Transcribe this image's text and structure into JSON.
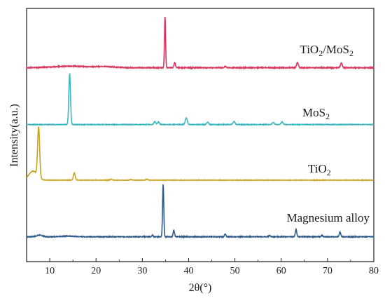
{
  "chart_data": {
    "type": "line",
    "xlabel": "2θ(°)",
    "ylabel": "Intensity(a.u.)",
    "xlim": [
      5,
      80
    ],
    "xticks": [
      "10",
      "20",
      "30",
      "40",
      "50",
      "60",
      "70",
      "80"
    ],
    "grid": false,
    "legend": "inline labels to the right of each trace",
    "series": [
      {
        "name_main": "Magnesium alloy",
        "name_sub": "",
        "name_tail": "",
        "color": "#2d5b8c",
        "baseline": 0.02,
        "noise": 0.006,
        "peaks": [
          {
            "x": 7.8,
            "h": 0.03,
            "w": 0.6
          },
          {
            "x": 14.0,
            "h": 0.012,
            "w": 1.2
          },
          {
            "x": 32.2,
            "h": 0.03,
            "w": 0.12
          },
          {
            "x": 34.5,
            "h": 1.0,
            "w": 0.13
          },
          {
            "x": 36.8,
            "h": 0.12,
            "w": 0.15
          },
          {
            "x": 47.9,
            "h": 0.05,
            "w": 0.15
          },
          {
            "x": 57.5,
            "h": 0.025,
            "w": 0.15
          },
          {
            "x": 63.2,
            "h": 0.14,
            "w": 0.15
          },
          {
            "x": 68.8,
            "h": 0.025,
            "w": 0.15
          },
          {
            "x": 72.7,
            "h": 0.09,
            "w": 0.15
          }
        ]
      },
      {
        "name_main": "TiO",
        "name_sub": "2",
        "name_tail": "",
        "color": "#c9a21f",
        "baseline": 0.03,
        "noise": 0.004,
        "peaks": [
          {
            "x": 6.4,
            "h": 0.18,
            "w": 0.9
          },
          {
            "x": 7.6,
            "h": 0.98,
            "w": 0.22
          },
          {
            "x": 15.3,
            "h": 0.14,
            "w": 0.2
          },
          {
            "x": 23.3,
            "h": 0.02,
            "w": 0.2
          },
          {
            "x": 27.5,
            "h": 0.015,
            "w": 0.2
          },
          {
            "x": 31.0,
            "h": 0.02,
            "w": 0.2
          }
        ]
      },
      {
        "name_main": "MoS",
        "name_sub": "2",
        "name_tail": "",
        "color": "#3cb8c1",
        "baseline": 0.02,
        "noise": 0.005,
        "peaks": [
          {
            "x": 14.3,
            "h": 1.0,
            "w": 0.18
          },
          {
            "x": 32.7,
            "h": 0.06,
            "w": 0.2
          },
          {
            "x": 33.5,
            "h": 0.05,
            "w": 0.2
          },
          {
            "x": 39.5,
            "h": 0.13,
            "w": 0.22
          },
          {
            "x": 44.1,
            "h": 0.05,
            "w": 0.2
          },
          {
            "x": 49.8,
            "h": 0.06,
            "w": 0.22
          },
          {
            "x": 58.3,
            "h": 0.04,
            "w": 0.22
          },
          {
            "x": 60.2,
            "h": 0.05,
            "w": 0.22
          }
        ]
      },
      {
        "name_main": "TiO",
        "name_sub": "2",
        "name_tail": "/MoS",
        "name_sub2": "2",
        "color": "#d9365e",
        "baseline": 0.02,
        "noise": 0.007,
        "peaks": [
          {
            "x": 14.5,
            "h": 0.03,
            "w": 3.5
          },
          {
            "x": 22.0,
            "h": 0.02,
            "w": 2.0
          },
          {
            "x": 34.9,
            "h": 1.0,
            "w": 0.12
          },
          {
            "x": 37.0,
            "h": 0.1,
            "w": 0.15
          },
          {
            "x": 47.9,
            "h": 0.03,
            "w": 0.15
          },
          {
            "x": 63.5,
            "h": 0.1,
            "w": 0.2
          },
          {
            "x": 73.0,
            "h": 0.09,
            "w": 0.2
          }
        ]
      }
    ]
  }
}
